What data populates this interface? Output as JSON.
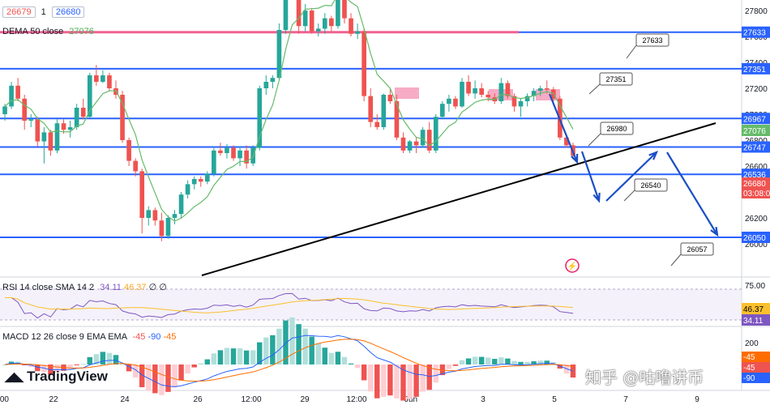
{
  "header": {
    "bid": "26679",
    "spread": "1",
    "ask": "26680",
    "indicator_name": "DEMA 50 close",
    "indicator_value": "27076"
  },
  "rsi_panel": {
    "label": "RSI 14 close SMA 14 2",
    "value1": "34.11",
    "value2": "46.37",
    "tail": "∅ ∅",
    "badge_top": "46.37",
    "badge_bottom": "34.11",
    "axis_top": "75.00"
  },
  "macd_panel": {
    "label": "MACD 12 26 close 9 EMA EMA",
    "v1": "-45",
    "v2": "-90",
    "v3": "-45",
    "axis_labels": [
      "200",
      "-45",
      "-45",
      "-90"
    ]
  },
  "branding": {
    "logo_text": "TradingView",
    "watermark": "知乎 @咕噜讲币"
  },
  "colors": {
    "up": "#26a69a",
    "down": "#ef5350",
    "line_blue": "#2962ff",
    "line_red": "#f06292",
    "dema": "#66bb6a",
    "rsi": "#7e57c2",
    "rsi_sma": "#fbc02d",
    "macd": "#2962ff",
    "signal": "#ff6d00"
  },
  "chart_data": {
    "type": "candlestick",
    "title": "",
    "price_axis_ticks": [
      27800,
      27600,
      27400,
      27200,
      27000,
      26800,
      26600,
      26400,
      26200,
      26000
    ],
    "time_axis_ticks": [
      ":00",
      "22",
      "24",
      "26",
      "12:00",
      "29",
      "12:00",
      "Jun",
      "3",
      "5",
      "7",
      "9"
    ],
    "horizontal_levels": [
      {
        "label": "27633",
        "value": 27633,
        "color": "#2962ff",
        "badge": "27633"
      },
      {
        "label": "27351",
        "value": 27351,
        "color": "#2962ff",
        "badge": "27351"
      },
      {
        "label": "26967",
        "value": 26967,
        "color": "#2962ff",
        "badge": "26967"
      },
      {
        "label": "26747",
        "value": 26747,
        "color": "#2962ff",
        "badge": "26747"
      },
      {
        "label": "26536",
        "value": 26536,
        "color": "#2962ff",
        "badge": "26536"
      },
      {
        "label": "26050",
        "value": 26050,
        "color": "#2962ff",
        "badge": "26050"
      }
    ],
    "resistance_line": {
      "value": 27633,
      "color": "#f06292"
    },
    "callouts": [
      "27633",
      "27351",
      "26980",
      "26540",
      "26057"
    ],
    "price_badges": [
      {
        "text": "27076",
        "color": "#66bb6a"
      },
      {
        "text": "26680",
        "color": "#ef5350"
      },
      {
        "text": "03:08:00",
        "color": "#ef5350"
      }
    ],
    "candles": [
      [
        27000,
        27080,
        26950,
        27060
      ],
      [
        27060,
        27250,
        27040,
        27220
      ],
      [
        27220,
        27280,
        27100,
        27120
      ],
      [
        27120,
        27150,
        26880,
        26950
      ],
      [
        26950,
        27000,
        26900,
        26960
      ],
      [
        26960,
        26980,
        26750,
        26790
      ],
      [
        26790,
        26900,
        26620,
        26860
      ],
      [
        26860,
        26880,
        26680,
        26720
      ],
      [
        26720,
        26960,
        26700,
        26930
      ],
      [
        26930,
        26960,
        26850,
        26880
      ],
      [
        26880,
        26950,
        26820,
        26900
      ],
      [
        26900,
        27080,
        26880,
        27050
      ],
      [
        27050,
        27120,
        26960,
        26980
      ],
      [
        26980,
        27320,
        26970,
        27300
      ],
      [
        27300,
        27380,
        27220,
        27250
      ],
      [
        27250,
        27340,
        27240,
        27300
      ],
      [
        27300,
        27320,
        27180,
        27200
      ],
      [
        27200,
        27260,
        27120,
        27150
      ],
      [
        27150,
        27180,
        26780,
        26800
      ],
      [
        26800,
        26820,
        26600,
        26640
      ],
      [
        26640,
        26660,
        26520,
        26560
      ],
      [
        26560,
        26580,
        26080,
        26200
      ],
      [
        26200,
        26290,
        26140,
        26260
      ],
      [
        26260,
        26280,
        26140,
        26180
      ],
      [
        26180,
        26240,
        26020,
        26060
      ],
      [
        26060,
        26220,
        26040,
        26200
      ],
      [
        26200,
        26260,
        26150,
        26230
      ],
      [
        26230,
        26400,
        26200,
        26380
      ],
      [
        26380,
        26490,
        26350,
        26460
      ],
      [
        26460,
        26520,
        26420,
        26500
      ],
      [
        26500,
        26520,
        26440,
        26480
      ],
      [
        26480,
        26560,
        26460,
        26540
      ],
      [
        26540,
        26750,
        26520,
        26720
      ],
      [
        26720,
        26780,
        26680,
        26700
      ],
      [
        26700,
        26770,
        26660,
        26740
      ],
      [
        26740,
        26760,
        26640,
        26660
      ],
      [
        26660,
        26750,
        26600,
        26720
      ],
      [
        26720,
        26760,
        26580,
        26620
      ],
      [
        26620,
        26760,
        26600,
        26740
      ],
      [
        26740,
        27220,
        26720,
        27200
      ],
      [
        27200,
        27300,
        27150,
        27250
      ],
      [
        27250,
        27300,
        27200,
        27280
      ],
      [
        27280,
        27700,
        27270,
        27650
      ],
      [
        27650,
        28050,
        27620,
        27980
      ],
      [
        27980,
        28100,
        27900,
        28000
      ],
      [
        28000,
        28050,
        27620,
        27680
      ],
      [
        27680,
        27850,
        27640,
        27800
      ],
      [
        27800,
        27820,
        27620,
        27640
      ],
      [
        27640,
        27700,
        27600,
        27660
      ],
      [
        27660,
        27780,
        27620,
        27740
      ],
      [
        27740,
        27760,
        27640,
        27680
      ],
      [
        27680,
        28050,
        27660,
        28000
      ],
      [
        28000,
        28020,
        27700,
        27740
      ],
      [
        27740,
        27780,
        27600,
        27620
      ],
      [
        27620,
        27700,
        27580,
        27640
      ],
      [
        27640,
        27660,
        27100,
        27140
      ],
      [
        27140,
        27200,
        26900,
        26940
      ],
      [
        26940,
        27000,
        26880,
        26900
      ],
      [
        26900,
        27160,
        26880,
        27150
      ],
      [
        27150,
        27200,
        27080,
        27100
      ],
      [
        27100,
        27150,
        26800,
        26820
      ],
      [
        26820,
        26860,
        26700,
        26720
      ],
      [
        26720,
        26800,
        26700,
        26790
      ],
      [
        26790,
        26820,
        26700,
        26760
      ],
      [
        26760,
        26900,
        26740,
        26880
      ],
      [
        26880,
        26940,
        26700,
        26720
      ],
      [
        26720,
        27000,
        26700,
        26980
      ],
      [
        26980,
        27100,
        26960,
        27080
      ],
      [
        27080,
        27150,
        27020,
        27120
      ],
      [
        27120,
        27140,
        27040,
        27060
      ],
      [
        27060,
        27280,
        27050,
        27250
      ],
      [
        27250,
        27300,
        27140,
        27160
      ],
      [
        27160,
        27260,
        27120,
        27200
      ],
      [
        27200,
        27240,
        27130,
        27150
      ],
      [
        27150,
        27180,
        27100,
        27130
      ],
      [
        27130,
        27160,
        27080,
        27100
      ],
      [
        27100,
        27280,
        27080,
        27240
      ],
      [
        27240,
        27260,
        27120,
        27140
      ],
      [
        27140,
        27160,
        27020,
        27060
      ],
      [
        27060,
        27120,
        26980,
        27100
      ],
      [
        27100,
        27160,
        27060,
        27140
      ],
      [
        27140,
        27200,
        27100,
        27180
      ],
      [
        27180,
        27220,
        27140,
        27200
      ],
      [
        27200,
        27260,
        27160,
        27190
      ],
      [
        27190,
        27210,
        27100,
        27120
      ],
      [
        27120,
        27140,
        26800,
        26820
      ],
      [
        26820,
        26840,
        26740,
        26760
      ],
      [
        26760,
        26780,
        26650,
        26680
      ]
    ]
  }
}
